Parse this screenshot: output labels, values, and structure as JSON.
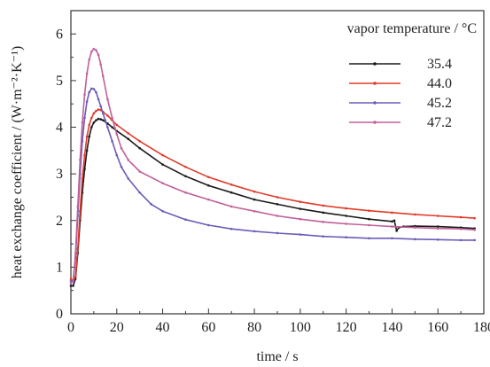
{
  "chart_data": {
    "type": "line",
    "xlabel": "time / s",
    "ylabel": "heat exchange coefficient / (W·m⁻²·K⁻¹)",
    "xlim": [
      0,
      180
    ],
    "ylim": [
      0,
      6.5
    ],
    "xticks": [
      "0",
      "20",
      "40",
      "60",
      "80",
      "100",
      "120",
      "140",
      "160",
      "180"
    ],
    "yticks": [
      "0",
      "1",
      "2",
      "3",
      "4",
      "5",
      "6"
    ],
    "grid": false,
    "legend": {
      "title": "vapor temperature / °C",
      "position": "top-right"
    },
    "series": [
      {
        "name": "35.4",
        "color": "#1a1a1a",
        "x": [
          0,
          1,
          2,
          3,
          4,
          5,
          6,
          7,
          8,
          9,
          10,
          11,
          12,
          13,
          14,
          16,
          18,
          20,
          25,
          30,
          40,
          50,
          60,
          70,
          80,
          90,
          100,
          110,
          120,
          130,
          140,
          141,
          142,
          143,
          145,
          150,
          160,
          170,
          176
        ],
        "y": [
          0.6,
          0.6,
          0.75,
          1.3,
          2.0,
          2.6,
          3.1,
          3.5,
          3.8,
          4.0,
          4.1,
          4.15,
          4.18,
          4.17,
          4.15,
          4.08,
          4.0,
          3.92,
          3.75,
          3.55,
          3.2,
          2.95,
          2.75,
          2.6,
          2.45,
          2.35,
          2.25,
          2.17,
          2.1,
          2.03,
          1.98,
          2.0,
          1.78,
          1.85,
          1.87,
          1.88,
          1.87,
          1.85,
          1.83
        ]
      },
      {
        "name": "44.0",
        "color": "#e03b2a",
        "x": [
          0,
          1,
          2,
          3,
          4,
          5,
          6,
          7,
          8,
          9,
          10,
          11,
          12,
          13,
          14,
          16,
          18,
          20,
          25,
          30,
          40,
          50,
          60,
          70,
          80,
          90,
          100,
          110,
          120,
          130,
          140,
          150,
          160,
          170,
          176
        ],
        "y": [
          0.75,
          0.7,
          0.8,
          1.4,
          2.2,
          2.9,
          3.4,
          3.8,
          4.05,
          4.2,
          4.3,
          4.35,
          4.38,
          4.37,
          4.33,
          4.25,
          4.15,
          4.05,
          3.87,
          3.7,
          3.4,
          3.15,
          2.93,
          2.77,
          2.62,
          2.5,
          2.4,
          2.32,
          2.26,
          2.21,
          2.17,
          2.13,
          2.1,
          2.07,
          2.05
        ]
      },
      {
        "name": "45.2",
        "color": "#6a5cb8",
        "x": [
          0,
          1,
          2,
          3,
          4,
          5,
          6,
          7,
          8,
          9,
          10,
          11,
          12,
          13,
          14,
          15,
          16,
          18,
          20,
          22,
          25,
          30,
          35,
          40,
          50,
          60,
          70,
          80,
          90,
          100,
          110,
          120,
          130,
          140,
          150,
          160,
          170,
          176
        ],
        "y": [
          0.7,
          0.72,
          1.2,
          2.1,
          3.0,
          3.7,
          4.2,
          4.55,
          4.75,
          4.83,
          4.82,
          4.75,
          4.6,
          4.45,
          4.3,
          4.15,
          4.0,
          3.7,
          3.4,
          3.15,
          2.9,
          2.6,
          2.35,
          2.2,
          2.02,
          1.9,
          1.82,
          1.77,
          1.73,
          1.7,
          1.66,
          1.64,
          1.62,
          1.62,
          1.6,
          1.59,
          1.58,
          1.58
        ]
      },
      {
        "name": "47.2",
        "color": "#c0609a",
        "x": [
          0,
          1,
          2,
          3,
          4,
          5,
          6,
          7,
          8,
          9,
          10,
          11,
          12,
          13,
          14,
          16,
          18,
          20,
          22,
          25,
          30,
          40,
          50,
          60,
          70,
          80,
          90,
          100,
          110,
          120,
          130,
          140,
          150,
          160,
          170,
          176
        ],
        "y": [
          0.65,
          0.7,
          1.3,
          2.3,
          3.3,
          4.1,
          4.7,
          5.15,
          5.45,
          5.62,
          5.68,
          5.65,
          5.55,
          5.35,
          5.1,
          4.6,
          4.2,
          3.85,
          3.55,
          3.3,
          3.05,
          2.8,
          2.6,
          2.45,
          2.3,
          2.2,
          2.1,
          2.03,
          1.97,
          1.93,
          1.9,
          1.87,
          1.85,
          1.83,
          1.82,
          1.8
        ]
      }
    ]
  }
}
